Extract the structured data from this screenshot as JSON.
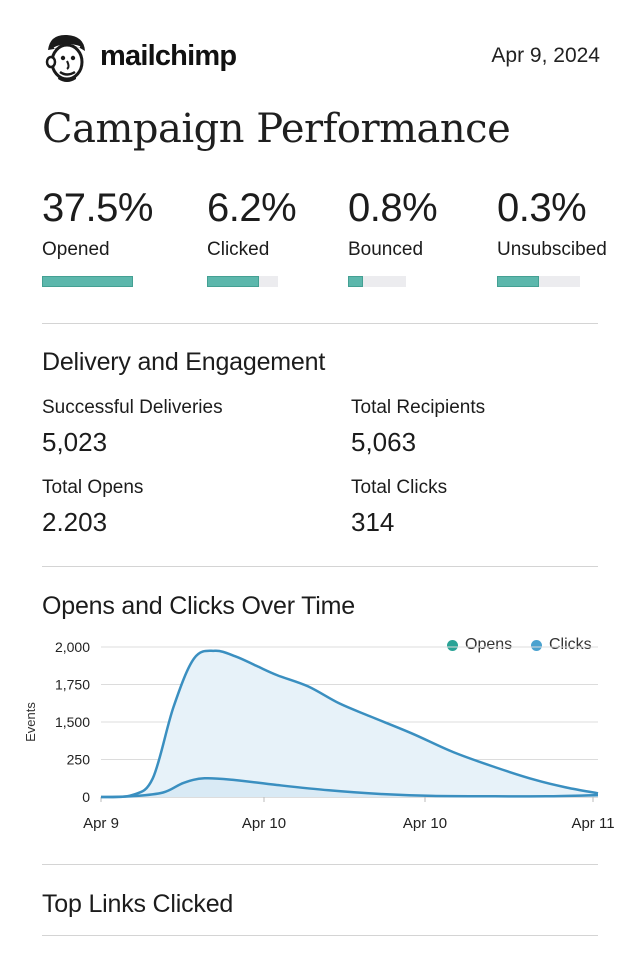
{
  "header": {
    "brand": "mailchimp",
    "date": "Apr 9, 2024"
  },
  "title": "Campaign Performance",
  "stats": [
    {
      "value": "37.5%",
      "label": "Opened",
      "bar_fraction": 1.0
    },
    {
      "value": "6.2%",
      "label": "Clicked",
      "bar_fraction": 0.73
    },
    {
      "value": "0.8%",
      "label": "Bounced",
      "bar_fraction": 0.25
    },
    {
      "value": "0.3%",
      "label": "Unsubscibed",
      "bar_fraction": 0.5
    }
  ],
  "delivery": {
    "title": "Delivery and Engagement",
    "successful_deliveries": {
      "label": "Successful Deliveries",
      "value": "5,023"
    },
    "total_recipients": {
      "label": "Total Recipients",
      "value": "5,063"
    },
    "total_opens": {
      "label": "Total Opens",
      "value": "2.203"
    },
    "total_clicks": {
      "label": "Total Clicks",
      "value": "314"
    }
  },
  "chart_section": {
    "title": "Opens and Clicks Over Time"
  },
  "chart_data": {
    "type": "area",
    "title": "Opens and Clicks Over Time",
    "xlabel": "",
    "ylabel": "Events",
    "y_ticks": [
      "0",
      "250",
      "1,500",
      "1,750",
      "2,000"
    ],
    "x_ticks": [
      "Apr 9",
      "Apr 10",
      "Apr 10",
      "Apr 11"
    ],
    "x_range": [
      0,
      48
    ],
    "tick_positions": [
      0,
      1,
      2,
      3,
      4
    ],
    "grid": true,
    "legend_position": "top-right",
    "series": [
      {
        "name": "Opens",
        "color": "#3a8fc0",
        "dot_color": "#2aa396",
        "points": [
          [
            0,
            0
          ],
          [
            3,
            0.05
          ],
          [
            5,
            0.5
          ],
          [
            7,
            2.4
          ],
          [
            9,
            3.7
          ],
          [
            11,
            3.9
          ],
          [
            13,
            3.75
          ],
          [
            15,
            3.5
          ],
          [
            17,
            3.25
          ],
          [
            20,
            2.95
          ],
          [
            23,
            2.5
          ],
          [
            26,
            2.15
          ],
          [
            30,
            1.7
          ],
          [
            34,
            1.2
          ],
          [
            38,
            0.8
          ],
          [
            42,
            0.45
          ],
          [
            45,
            0.25
          ],
          [
            48,
            0.1
          ]
        ]
      },
      {
        "name": "Clicks",
        "color": "#3a8fc0",
        "dot_color": "#4aa2cf",
        "points": [
          [
            0,
            0
          ],
          [
            3,
            0.02
          ],
          [
            6,
            0.12
          ],
          [
            8,
            0.38
          ],
          [
            10,
            0.5
          ],
          [
            13,
            0.45
          ],
          [
            17,
            0.32
          ],
          [
            22,
            0.18
          ],
          [
            27,
            0.08
          ],
          [
            32,
            0.03
          ],
          [
            38,
            0.02
          ],
          [
            43,
            0.02
          ],
          [
            48,
            0.05
          ]
        ]
      }
    ]
  },
  "top_links": {
    "title": "Top Links Clicked"
  },
  "colors": {
    "accent_teal": "#5cb7ac",
    "chart_line": "#3a8fc0",
    "chart_fill": "#e7f2f9"
  }
}
